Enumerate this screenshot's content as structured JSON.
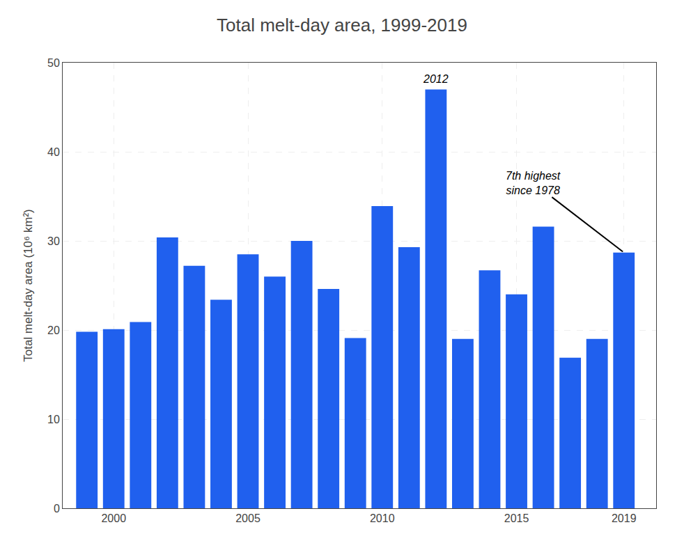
{
  "chart_data": {
    "type": "bar",
    "title": "Total melt-day area, 1999-2019",
    "ylabel": "Total melt-day area (10⁶ km²)",
    "x": [
      1999,
      2000,
      2001,
      2002,
      2003,
      2004,
      2005,
      2006,
      2007,
      2008,
      2009,
      2010,
      2011,
      2012,
      2013,
      2014,
      2015,
      2016,
      2017,
      2018,
      2019
    ],
    "values": [
      19.8,
      20.1,
      20.9,
      30.4,
      27.2,
      23.4,
      28.5,
      26.0,
      30.0,
      24.6,
      19.1,
      33.9,
      29.3,
      47.0,
      19.0,
      26.7,
      24.0,
      31.6,
      16.9,
      19.0,
      28.7
    ],
    "color": "#2060EE",
    "xlim": [
      1998.1,
      2020.2
    ],
    "xticks": [
      2000,
      2005,
      2010,
      2015,
      2019
    ],
    "ylim": [
      0,
      50
    ],
    "yticks": [
      0,
      10,
      20,
      30,
      40,
      50
    ],
    "grid": true,
    "annotations": [
      {
        "text": "2012",
        "x": 2012
      },
      {
        "text": "7th highest\nsince 1978",
        "x": 2019
      }
    ]
  }
}
